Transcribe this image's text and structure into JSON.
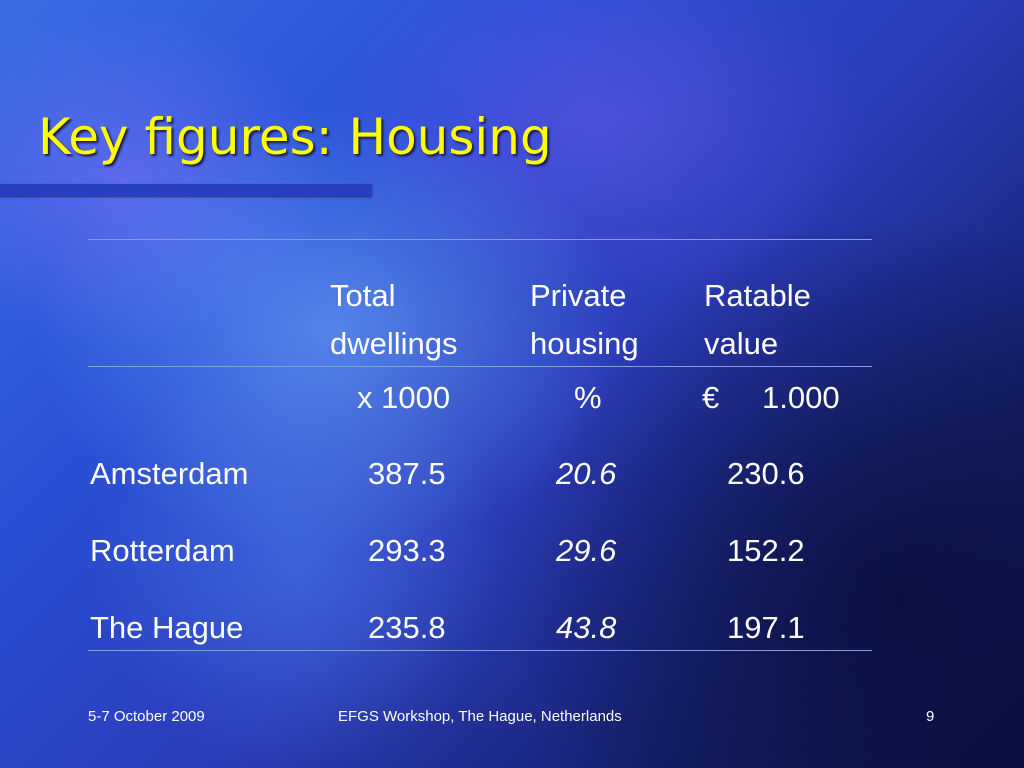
{
  "slide": {
    "title": "Key figures: Housing"
  },
  "table": {
    "headers": {
      "total_line1": "Total",
      "total_line2": "dwellings",
      "private_line1": "Private",
      "private_line2": "housing",
      "ratable_line1": "Ratable",
      "ratable_line2": "value"
    },
    "units": {
      "total": "x 1000",
      "private": "%",
      "ratable_symbol": "€",
      "ratable_value": "1.000"
    },
    "rows": [
      {
        "city": "Amsterdam",
        "total": "387.5",
        "private": "20.6",
        "ratable": "230.6"
      },
      {
        "city": "Rotterdam",
        "total": "293.3",
        "private": "29.6",
        "ratable": "152.2"
      },
      {
        "city": "The Hague",
        "total": "235.8",
        "private": "43.8",
        "ratable": "197.1"
      }
    ]
  },
  "footer": {
    "date": "5-7 October 2009",
    "event": "EFGS Workshop, The Hague, Netherlands",
    "page": "9"
  }
}
